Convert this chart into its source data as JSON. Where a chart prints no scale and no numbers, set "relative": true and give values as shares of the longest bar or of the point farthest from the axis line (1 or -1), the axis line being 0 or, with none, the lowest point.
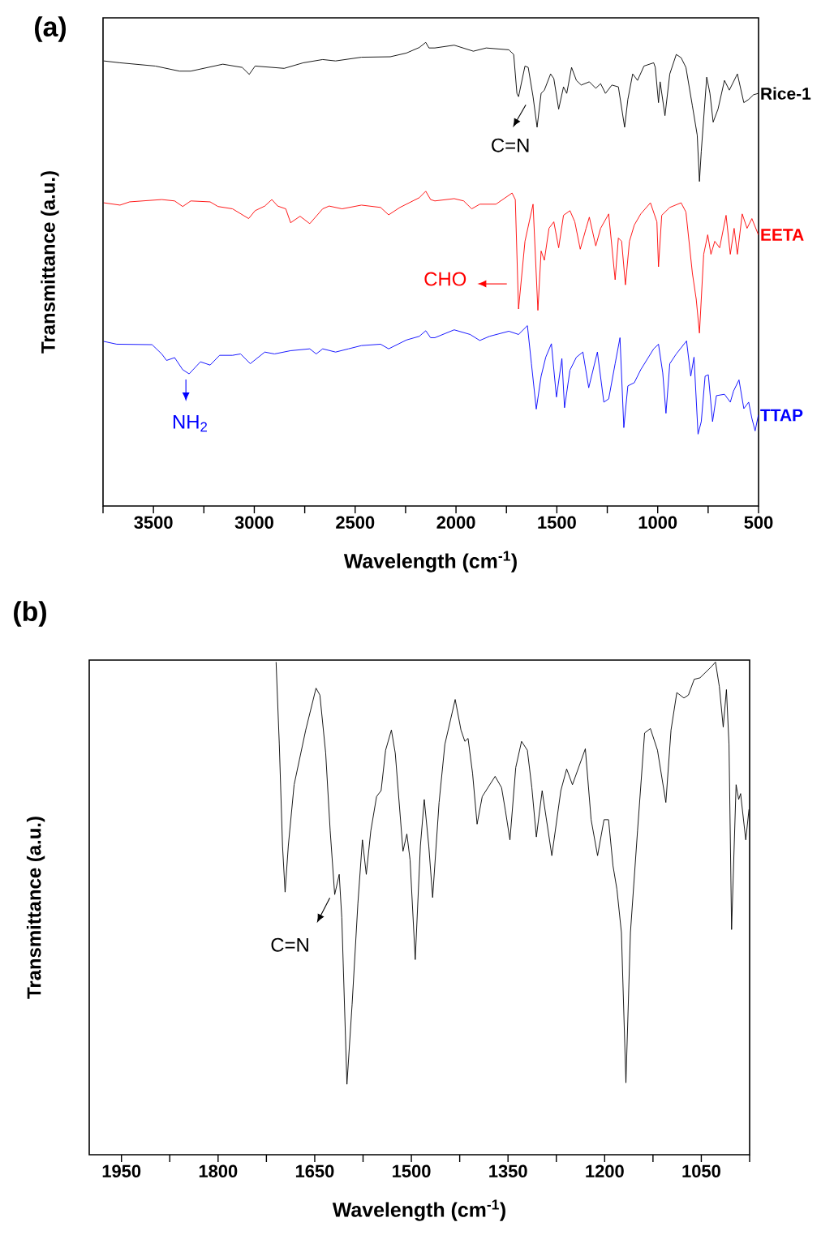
{
  "chart_data": [
    {
      "type": "line",
      "title": "(a)",
      "xlabel": "Wavelength (cm$^{-1}$)",
      "ylabel": "Transmittance (a.u.)",
      "relative": true,
      "xlim": [
        3750,
        500
      ],
      "xticks": [
        {
          "value": 3750,
          "label": null
        },
        3500,
        {
          "value": 3250,
          "label": null
        },
        3000,
        {
          "value": 2750,
          "label": null
        },
        2500,
        {
          "value": 2250,
          "label": null
        },
        2000,
        {
          "value": 1750,
          "label": null
        },
        1500,
        {
          "value": 1250,
          "label": null
        },
        1000,
        {
          "value": 750,
          "label": null
        },
        500
      ],
      "series": [
        {
          "name": "Rice-1",
          "color": "#000000",
          "x": [
            3746,
            3666,
            3491,
            3371,
            3315,
            3156,
            3060,
            3025,
            2996,
            2852,
            2757,
            2661,
            2597,
            2469,
            2326,
            2246,
            2182,
            2150,
            2134,
            2105,
            2009,
            1914,
            1850,
            1738,
            1714,
            1698,
            1690,
            1658,
            1642,
            1618,
            1598,
            1578,
            1562,
            1531,
            1515,
            1491,
            1467,
            1451,
            1427,
            1403,
            1379,
            1339,
            1307,
            1283,
            1259,
            1227,
            1195,
            1164,
            1148,
            1124,
            1100,
            1068,
            1020,
            1012,
            996,
            988,
            964,
            940,
            908,
            884,
            860,
            828,
            804,
            793,
            784,
            757,
            741,
            725,
            701,
            669,
            645,
            605,
            573,
            549,
            525,
            501
          ],
          "values": [
            0.96,
            0.956,
            0.949,
            0.938,
            0.938,
            0.953,
            0.946,
            0.931,
            0.949,
            0.944,
            0.956,
            0.963,
            0.96,
            0.968,
            0.969,
            0.977,
            0.989,
            1.0,
            0.988,
            0.988,
            0.994,
            0.981,
            0.988,
            0.984,
            0.974,
            0.89,
            0.883,
            0.949,
            0.946,
            0.883,
            0.817,
            0.89,
            0.897,
            0.932,
            0.922,
            0.856,
            0.904,
            0.89,
            0.946,
            0.918,
            0.908,
            0.915,
            0.901,
            0.911,
            0.89,
            0.908,
            0.904,
            0.817,
            0.877,
            0.932,
            0.918,
            0.949,
            0.956,
            0.946,
            0.87,
            0.915,
            0.842,
            0.932,
            0.974,
            0.967,
            0.946,
            0.863,
            0.8,
            0.7,
            0.765,
            0.925,
            0.89,
            0.828,
            0.856,
            0.918,
            0.897,
            0.932,
            0.87,
            0.877,
            0.887,
            0.89
          ]
        },
        {
          "name": "EETA",
          "color": "#ff0000",
          "x": [
            3746,
            3666,
            3618,
            3459,
            3395,
            3355,
            3315,
            3219,
            3180,
            3108,
            3028,
            2996,
            2948,
            2913,
            2884,
            2844,
            2820,
            2773,
            2725,
            2661,
            2629,
            2565,
            2469,
            2374,
            2334,
            2278,
            2182,
            2150,
            2126,
            2105,
            2009,
            1962,
            1922,
            1882,
            1802,
            1722,
            1706,
            1690,
            1658,
            1618,
            1594,
            1578,
            1562,
            1539,
            1515,
            1491,
            1467,
            1435,
            1411,
            1384,
            1355,
            1339,
            1307,
            1283,
            1243,
            1211,
            1195,
            1179,
            1160,
            1140,
            1116,
            1084,
            1036,
            1004,
            996,
            980,
            940,
            884,
            860,
            828,
            809,
            793,
            772,
            752,
            736,
            717,
            693,
            661,
            640,
            621,
            605,
            581,
            557,
            533,
            501
          ],
          "values": [
            0.654,
            0.649,
            0.656,
            0.661,
            0.658,
            0.646,
            0.658,
            0.656,
            0.646,
            0.641,
            0.62,
            0.637,
            0.647,
            0.661,
            0.647,
            0.641,
            0.611,
            0.625,
            0.609,
            0.641,
            0.647,
            0.641,
            0.649,
            0.644,
            0.628,
            0.644,
            0.665,
            0.679,
            0.661,
            0.658,
            0.663,
            0.658,
            0.641,
            0.651,
            0.651,
            0.675,
            0.661,
            0.425,
            0.571,
            0.651,
            0.422,
            0.55,
            0.53,
            0.599,
            0.613,
            0.557,
            0.627,
            0.637,
            0.613,
            0.554,
            0.599,
            0.623,
            0.561,
            0.599,
            0.63,
            0.488,
            0.578,
            0.571,
            0.477,
            0.571,
            0.606,
            0.63,
            0.654,
            0.613,
            0.516,
            0.627,
            0.644,
            0.654,
            0.634,
            0.502,
            0.446,
            0.373,
            0.543,
            0.585,
            0.543,
            0.571,
            0.557,
            0.627,
            0.543,
            0.599,
            0.543,
            0.63,
            0.599,
            0.62,
            0.585
          ]
        },
        {
          "name": "TTAP",
          "color": "#0000ff",
          "x": [
            3746,
            3682,
            3507,
            3459,
            3435,
            3395,
            3355,
            3323,
            3267,
            3219,
            3172,
            3108,
            3068,
            3020,
            2948,
            2900,
            2820,
            2725,
            2693,
            2661,
            2597,
            2533,
            2469,
            2374,
            2334,
            2246,
            2182,
            2150,
            2126,
            2105,
            2009,
            1930,
            1882,
            1834,
            1738,
            1690,
            1646,
            1626,
            1602,
            1578,
            1555,
            1527,
            1502,
            1475,
            1462,
            1435,
            1403,
            1371,
            1342,
            1299,
            1267,
            1243,
            1211,
            1187,
            1168,
            1148,
            1116,
            1084,
            1020,
            996,
            975,
            959,
            940,
            908,
            857,
            836,
            820,
            800,
            784,
            765,
            749,
            728,
            709,
            669,
            640,
            624,
            597,
            573,
            549,
            533,
            517,
            501
          ],
          "values": [
            0.355,
            0.349,
            0.348,
            0.328,
            0.314,
            0.32,
            0.294,
            0.285,
            0.311,
            0.304,
            0.325,
            0.325,
            0.328,
            0.307,
            0.332,
            0.328,
            0.335,
            0.339,
            0.328,
            0.339,
            0.332,
            0.339,
            0.346,
            0.349,
            0.339,
            0.358,
            0.366,
            0.378,
            0.363,
            0.363,
            0.38,
            0.37,
            0.357,
            0.366,
            0.377,
            0.37,
            0.389,
            0.307,
            0.209,
            0.28,
            0.321,
            0.35,
            0.235,
            0.318,
            0.212,
            0.293,
            0.321,
            0.332,
            0.255,
            0.332,
            0.224,
            0.231,
            0.307,
            0.363,
            0.169,
            0.259,
            0.266,
            0.294,
            0.339,
            0.349,
            0.287,
            0.2,
            0.307,
            0.328,
            0.356,
            0.28,
            0.321,
            0.155,
            0.182,
            0.28,
            0.283,
            0.182,
            0.238,
            0.241,
            0.224,
            0.248,
            0.272,
            0.21,
            0.224,
            0.189,
            0.162,
            0.196
          ]
        }
      ],
      "annotations": [
        {
          "text": "C=N",
          "x": 1690,
          "y": 0.883
        },
        "CHO",
        {
          "text": "NH$_{2}$",
          "x": 3323,
          "y": 0.285
        }
      ]
    },
    {
      "type": "line",
      "title": "(b)",
      "xlabel": "Wavelength (cm$^{-1}$)",
      "ylabel": "Transmittance (a.u.)",
      "relative": true,
      "xlim": [
        2000,
        975
      ],
      "xticks": [
        1950,
        {
          "value": 1875,
          "label": null
        },
        1800,
        {
          "value": 1725,
          "label": null
        },
        1650,
        {
          "value": 1575,
          "label": null
        },
        1500,
        {
          "value": 1425,
          "label": null
        },
        1350,
        {
          "value": 1275,
          "label": null
        },
        1200,
        {
          "value": 1125,
          "label": null
        },
        1050,
        {
          "value": 975,
          "label": null
        }
      ],
      "series": [
        {
          "color": "#000000",
          "x": [
            1710,
            1705,
            1700,
            1696,
            1691,
            1682,
            1664,
            1648,
            1642,
            1633,
            1626,
            1619,
            1612,
            1608,
            1600,
            1592,
            1583,
            1576,
            1570,
            1563,
            1554,
            1547,
            1540,
            1531,
            1525,
            1513,
            1507,
            1502,
            1494,
            1486,
            1480,
            1473,
            1467,
            1457,
            1448,
            1432,
            1423,
            1417,
            1412,
            1405,
            1398,
            1390,
            1370,
            1360,
            1354,
            1347,
            1338,
            1329,
            1320,
            1313,
            1306,
            1297,
            1291,
            1282,
            1268,
            1259,
            1250,
            1230,
            1221,
            1211,
            1201,
            1194,
            1187,
            1181,
            1174,
            1167,
            1160,
            1149,
            1138,
            1129,
            1118,
            1105,
            1097,
            1088,
            1077,
            1070,
            1061,
            1052,
            1034,
            1028,
            1022,
            1016,
            1011,
            1007,
            1003,
            996,
            992,
            989,
            981,
            976
          ],
          "values": [
            1.0,
            0.833,
            0.627,
            0.533,
            0.627,
            0.751,
            0.862,
            0.947,
            0.933,
            0.815,
            0.657,
            0.528,
            0.569,
            0.481,
            0.143,
            0.305,
            0.51,
            0.639,
            0.569,
            0.657,
            0.727,
            0.739,
            0.821,
            0.862,
            0.815,
            0.616,
            0.651,
            0.598,
            0.396,
            0.627,
            0.721,
            0.627,
            0.522,
            0.715,
            0.833,
            0.924,
            0.862,
            0.839,
            0.845,
            0.774,
            0.671,
            0.727,
            0.768,
            0.745,
            0.698,
            0.639,
            0.786,
            0.839,
            0.821,
            0.745,
            0.645,
            0.739,
            0.686,
            0.607,
            0.739,
            0.783,
            0.751,
            0.824,
            0.68,
            0.607,
            0.68,
            0.68,
            0.586,
            0.539,
            0.451,
            0.146,
            0.451,
            0.657,
            0.856,
            0.865,
            0.821,
            0.715,
            0.862,
            0.938,
            0.927,
            0.933,
            0.965,
            0.968,
            0.991,
            1.0,
            0.95,
            0.868,
            0.944,
            0.833,
            0.457,
            0.751,
            0.721,
            0.733,
            0.639,
            0.701
          ]
        }
      ],
      "annotations": [
        {
          "text": "C=N",
          "x": 1619,
          "y": 0.528
        }
      ]
    }
  ]
}
